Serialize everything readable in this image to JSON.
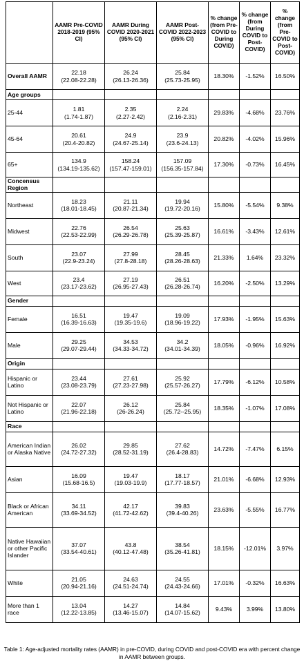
{
  "header": {
    "col0": "",
    "col1": "AAMR Pre-COVID 2018-2019 (95% CI)",
    "col2": "AAMR During COVID 2020-2021 (95% CI)",
    "col3": "AAMR Post-COVID 2022-2023 (95% CI)",
    "col4": "% change (from Pre-COVID to During COVID)",
    "col5": "% change (from During COVID to Post-COVID)",
    "col6": "% change (from Pre-COVID to Post-COVID)"
  },
  "overall": {
    "label": "Overall AAMR",
    "pre": "22.18",
    "pre_ci": "(22.08-22.28)",
    "during": "26.24",
    "during_ci": "(26.13-26.36)",
    "post": "25.84",
    "post_ci": "(25.73-25.95)",
    "chg1": "18.30%",
    "chg2": "-1.52%",
    "chg3": "16.50%"
  },
  "sections": [
    {
      "title": "Age groups",
      "rows": [
        {
          "label": "25-44",
          "pre": "1.81",
          "pre_ci": "(1.74-1.87)",
          "during": "2.35",
          "during_ci": "(2.27-2.42)",
          "post": "2.24",
          "post_ci": "(2.16-2.31)",
          "chg1": "29.83%",
          "chg2": "-4.68%",
          "chg3": "23.76%"
        },
        {
          "label": "45-64",
          "pre": "20.61",
          "pre_ci": "(20.4-20.82)",
          "during": "24.9",
          "during_ci": "(24.67-25.14)",
          "post": "23.9",
          "post_ci": "(23.6-24.13)",
          "chg1": "20.82%",
          "chg2": "-4.02%",
          "chg3": "15.96%"
        },
        {
          "label": "65+",
          "pre": "134.9",
          "pre_ci": "(134.19-135.62)",
          "during": "158.24",
          "during_ci": "(157.47-159.01)",
          "post": "157.09",
          "post_ci": "(156.35-157.84)",
          "chg1": "17.30%",
          "chg2": "-0.73%",
          "chg3": "16.45%"
        }
      ]
    },
    {
      "title": "Concensus Region",
      "rows": [
        {
          "label": "Northeast",
          "pre": "18.23",
          "pre_ci": "(18.01-18.45)",
          "during": "21.11",
          "during_ci": "(20.87-21.34)",
          "post": "19.94",
          "post_ci": "(19.72-20.16)",
          "chg1": "15.80%",
          "chg2": "-5.54%",
          "chg3": "9.38%"
        },
        {
          "label": "Midwest",
          "pre": "22.76",
          "pre_ci": "(22.53-22.99)",
          "during": "26.54",
          "during_ci": "(26.29-26.78)",
          "post": "25.63",
          "post_ci": "(25.39-25.87)",
          "chg1": "16.61%",
          "chg2": "-3.43%",
          "chg3": "12.61%"
        },
        {
          "label": "South",
          "pre": "23.07",
          "pre_ci": "(22.9-23.24)",
          "during": "27.99",
          "during_ci": "(27.8-28.18)",
          "post": "28.45",
          "post_ci": "(28.26-28.63)",
          "chg1": "21.33%",
          "chg2": "1.64%",
          "chg3": "23.32%"
        },
        {
          "label": "West",
          "pre": "23.4",
          "pre_ci": "(23.17-23.62)",
          "during": "27.19",
          "during_ci": "(26.95-27.43)",
          "post": "26.51",
          "post_ci": "(26.28-26.74)",
          "chg1": "16.20%",
          "chg2": "-2.50%",
          "chg3": "13.29%"
        }
      ]
    },
    {
      "title": "Gender",
      "rows": [
        {
          "label": "Female",
          "pre": "16.51",
          "pre_ci": "(16.39-16.63)",
          "during": "19.47",
          "during_ci": "(19.35-19.6)",
          "post": "19.09",
          "post_ci": "(18.96-19.22)",
          "chg1": "17.93%",
          "chg2": "-1.95%",
          "chg3": "15.63%"
        },
        {
          "label": "Male",
          "pre": "29.25",
          "pre_ci": "(29.07-29.44)",
          "during": "34.53",
          "during_ci": "(34.33-34.72)",
          "post": "34.2",
          "post_ci": "(34.01-34.39)",
          "chg1": "18.05%",
          "chg2": "-0.96%",
          "chg3": "16.92%"
        }
      ]
    },
    {
      "title": "Origin",
      "rows": [
        {
          "label": "Hispanic or Latino",
          "pre": "23.44",
          "pre_ci": "(23.08-23.79)",
          "during": "27.61",
          "during_ci": "(27.23-27.98)",
          "post": "25.92",
          "post_ci": "(25.57-26.27)",
          "chg1": "17.79%",
          "chg2": "-6.12%",
          "chg3": "10.58%"
        },
        {
          "label": "Not Hispanic or Latino",
          "pre": "22.07",
          "pre_ci": "(21.96-22.18)",
          "during": "26.12",
          "during_ci": "(26-26.24)",
          "post": "25.84",
          "post_ci": "(25.72--25.95)",
          "chg1": "18.35%",
          "chg2": "-1.07%",
          "chg3": "17.08%"
        }
      ]
    },
    {
      "title": "Race",
      "rows": [
        {
          "label": "American Indian or Alaska Native",
          "pre": "26.02",
          "pre_ci": "(24.72-27.32)",
          "during": "29.85",
          "during_ci": "(28.52-31.19)",
          "post": "27.62",
          "post_ci": "(26.4-28.83)",
          "chg1": "14.72%",
          "chg2": "-7.47%",
          "chg3": "6.15%"
        },
        {
          "label": "Asian",
          "pre": "16.09",
          "pre_ci": "(15.68-16.5)",
          "during": "19.47",
          "during_ci": "(19.03-19.9)",
          "post": "18.17",
          "post_ci": "(17.77-18.57)",
          "chg1": "21.01%",
          "chg2": "-6.68%",
          "chg3": "12.93%"
        },
        {
          "label": "Black or African American",
          "pre": "34.11",
          "pre_ci": "(33.69-34.52)",
          "during": "42.17",
          "during_ci": "(41.72-42.62)",
          "post": "39.83",
          "post_ci": "(39.4-40.26)",
          "chg1": "23.63%",
          "chg2": "-5.55%",
          "chg3": "16.77%"
        },
        {
          "label": "Native Hawaiian or other Pacific Islander",
          "pre": "37.07",
          "pre_ci": "(33.54-40.61)",
          "during": "43.8",
          "during_ci": "(40.12-47.48)",
          "post": "38.54",
          "post_ci": "(35.26-41.81)",
          "chg1": "18.15%",
          "chg2": "-12.01%",
          "chg3": "3.97%"
        },
        {
          "label": "White",
          "pre": "21.05",
          "pre_ci": "(20.94-21.16)",
          "during": "24.63",
          "during_ci": "(24.51-24.74)",
          "post": "24.55",
          "post_ci": "(24.43-24.66)",
          "chg1": "17.01%",
          "chg2": "-0.32%",
          "chg3": "16.63%"
        },
        {
          "label": "More than 1 race",
          "pre": "13.04",
          "pre_ci": "(12.22-13.85)",
          "during": "14.27",
          "during_ci": "(13.46-15.07)",
          "post": "14.84",
          "post_ci": "(14.07-15.62)",
          "chg1": "9.43%",
          "chg2": "3.99%",
          "chg3": "13.80%"
        }
      ]
    }
  ],
  "caption": "Table 1: Age-adjusted mortality rates (AAMR) in pre-COVID, during COVID and post-COVID era with percent change in AAMR between groups."
}
